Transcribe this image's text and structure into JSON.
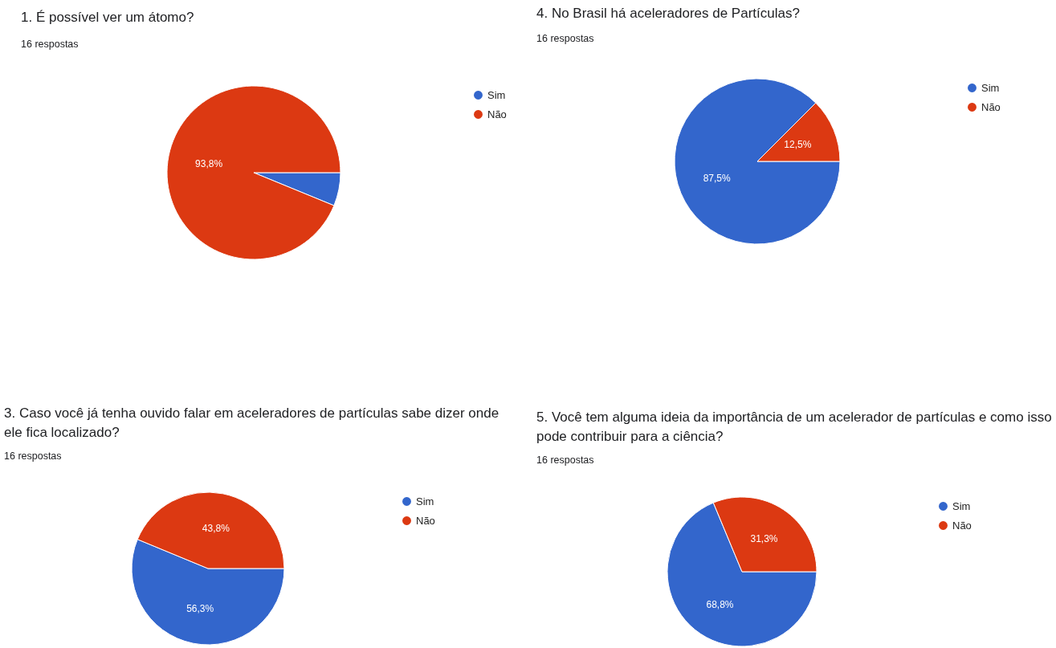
{
  "chart_data": [
    {
      "type": "pie",
      "title": "1. É possível ver um átomo?",
      "subtitle": "16 respostas",
      "categories": [
        "Sim",
        "Não"
      ],
      "values": [
        6.2,
        93.8
      ],
      "colors": [
        "#3366cc",
        "#dc3912"
      ],
      "value_labels": [
        null,
        "93,8%"
      ],
      "legend": "top right"
    },
    {
      "type": "pie",
      "title": "4. No Brasil há aceleradores de Partículas?",
      "subtitle": "16 respostas",
      "categories": [
        "Sim",
        "Não"
      ],
      "values": [
        87.5,
        12.5
      ],
      "colors": [
        "#3366cc",
        "#dc3912"
      ],
      "value_labels": [
        "87,5%",
        "12,5%"
      ],
      "legend": "top right"
    },
    {
      "type": "pie",
      "title": "3. Caso  você já tenha ouvido falar em aceleradores de partículas sabe dizer onde ele fica localizado?",
      "subtitle": "16 respostas",
      "categories": [
        "Sim",
        "Não"
      ],
      "values": [
        56.3,
        43.8
      ],
      "colors": [
        "#3366cc",
        "#dc3912"
      ],
      "value_labels": [
        "56,3%",
        "43,8%"
      ],
      "legend": "top right"
    },
    {
      "type": "pie",
      "title": "5. Você tem alguma ideia da importância de um acelerador de partículas e como isso pode contribuir para a ciência?",
      "subtitle": "16 respostas",
      "categories": [
        "Sim",
        "Não"
      ],
      "values": [
        68.8,
        31.3
      ],
      "colors": [
        "#3366cc",
        "#dc3912"
      ],
      "value_labels": [
        "68,8%",
        "31,3%"
      ],
      "legend": "top right"
    }
  ]
}
